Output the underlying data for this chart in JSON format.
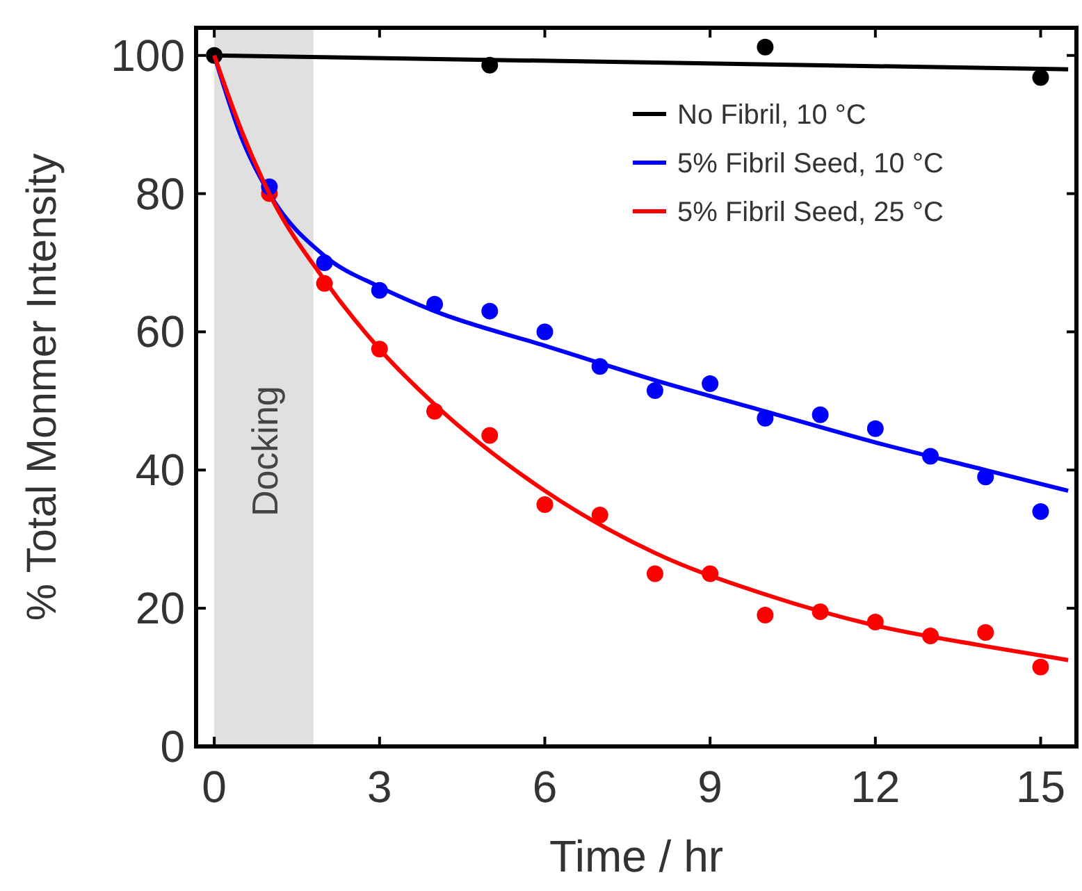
{
  "chart_data": {
    "type": "scatter",
    "xlabel": "Time / hr",
    "ylabel": "% Total Monmer Intensity",
    "xlim": [
      -0.33,
      15.65
    ],
    "ylim": [
      0,
      104
    ],
    "xticks": [
      0,
      3,
      6,
      9,
      12,
      15
    ],
    "yticks": [
      0,
      20,
      40,
      60,
      80,
      100
    ],
    "grid": false,
    "legend": "top right",
    "bands": [
      {
        "axis": "x",
        "from": 0,
        "to": 1.8,
        "label": "Docking",
        "color": "#e0e0e0"
      }
    ],
    "series": [
      {
        "color": "#ff0000",
        "marker": "circle",
        "x": [
          1,
          2,
          3,
          4,
          5,
          6,
          7,
          8,
          9,
          10,
          11,
          12,
          13,
          14,
          15
        ],
        "values": [
          80,
          67,
          57.5,
          48.5,
          45,
          35,
          33.5,
          25,
          25,
          19,
          19.5,
          18,
          16,
          16.5,
          11.5
        ]
      },
      {
        "color": "#0000ff",
        "marker": "circle",
        "x": [
          1,
          2,
          3,
          4,
          5,
          6,
          7,
          8,
          9,
          10,
          11,
          12,
          13,
          14,
          15
        ],
        "values": [
          81,
          70,
          66,
          64,
          63,
          60,
          55,
          51.5,
          52.5,
          47.5,
          48,
          46,
          42,
          39,
          34
        ]
      },
      {
        "color": "#000000",
        "marker": "circle",
        "x": [
          0,
          5,
          10,
          15
        ],
        "values": [
          100,
          98.6,
          101.2,
          96.8
        ]
      },
      {
        "type": "line",
        "marker": "none",
        "name": "No Fibril, 10 °C",
        "color": "#000000",
        "x": [
          0,
          15.5
        ],
        "values": [
          100,
          98
        ]
      },
      {
        "type": "line",
        "marker": "none",
        "name": "5% Fibril Seed, 10 °C",
        "color": "#0000ff",
        "x": [
          0,
          0.5,
          1,
          2,
          3,
          4,
          6,
          8,
          10,
          12,
          14,
          15.5
        ],
        "values": [
          100,
          88,
          80,
          71,
          66.5,
          63,
          58,
          53,
          48.5,
          44,
          40,
          37
        ]
      },
      {
        "type": "line",
        "marker": "none",
        "name": "5% Fibril Seed, 25 °C",
        "color": "#ff0000",
        "x": [
          0,
          0.5,
          1,
          2,
          3,
          4,
          6,
          8,
          10,
          12,
          14,
          15.5
        ],
        "values": [
          100,
          89,
          80,
          67.5,
          57.5,
          49.5,
          37,
          28,
          22,
          17.5,
          14.5,
          12.5
        ]
      }
    ]
  }
}
